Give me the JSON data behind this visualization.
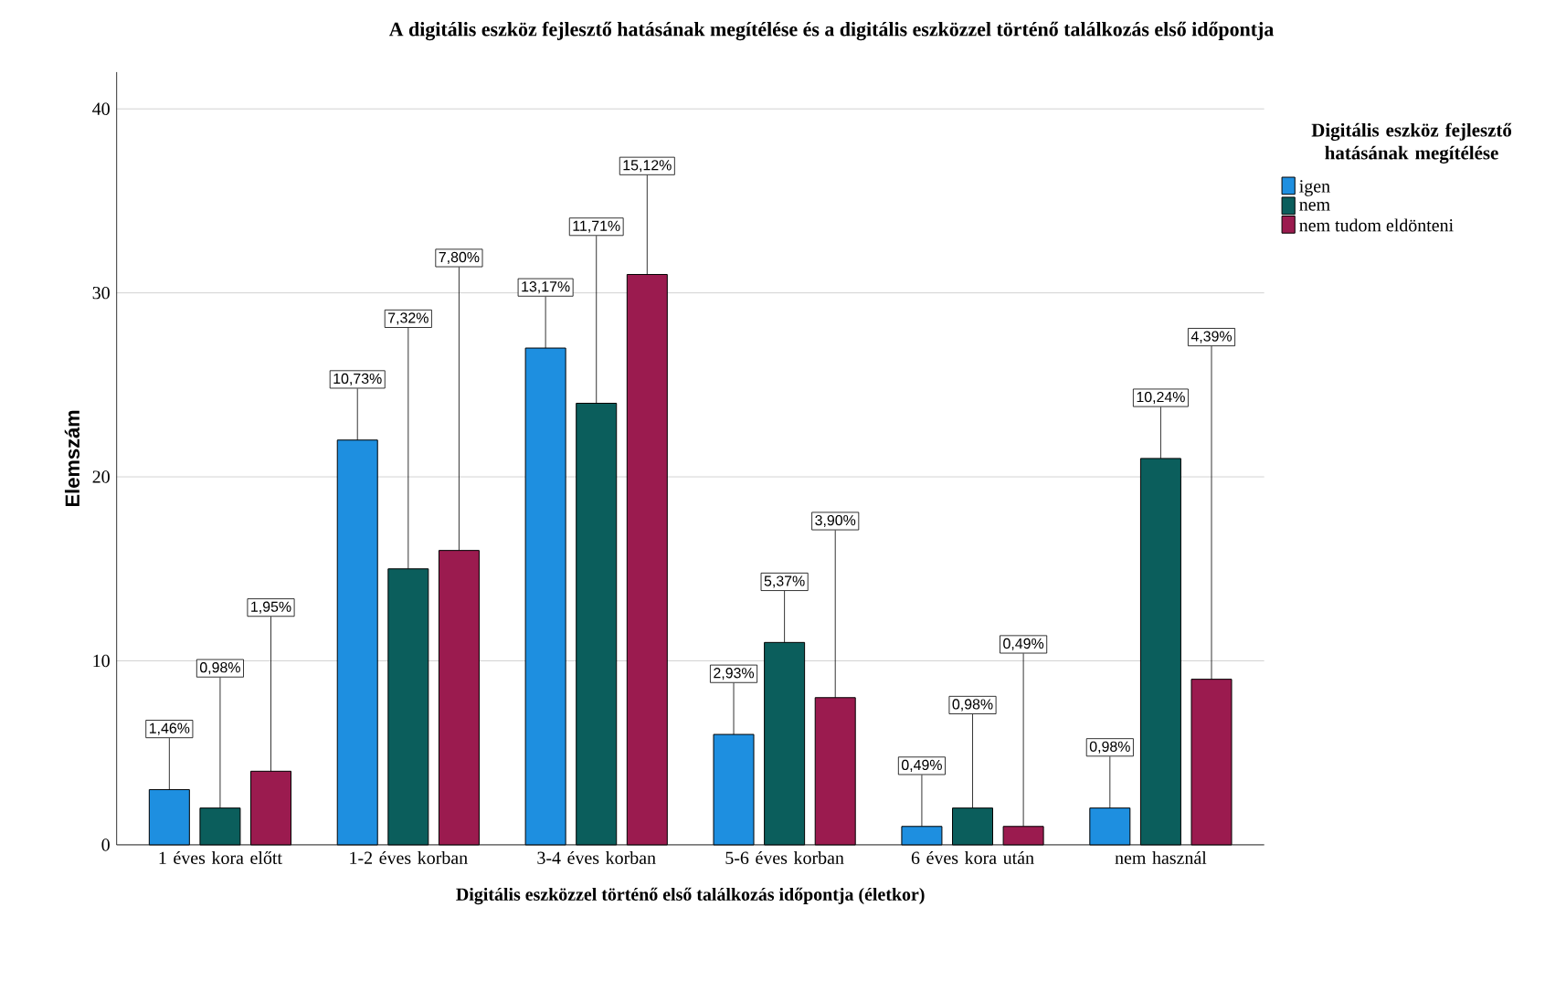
{
  "chart_data": {
    "type": "bar",
    "title": "A digitális eszköz fejlesztő hatásának megítélése és a digitális eszközzel történő találkozás első időpontja",
    "xlabel": "Digitális eszközzel történő első találkozás időpontja (életkor)",
    "ylabel": "Elemszám",
    "legend_title": "Digitális eszköz fejlesztő hatásának megítélése",
    "categories": [
      "1 éves kora előtt",
      "1-2 éves korban",
      "3-4 éves korban",
      "5-6 éves korban",
      "6 éves kora után",
      "nem használ"
    ],
    "series": [
      {
        "name": "igen",
        "color": "#1e8fe0",
        "values": [
          3,
          22,
          27,
          6,
          1,
          2
        ]
      },
      {
        "name": "nem",
        "color": "#0b5e5c",
        "values": [
          2,
          15,
          24,
          11,
          2,
          21
        ]
      },
      {
        "name": "nem tudom eldönteni",
        "color": "#9b1b4f",
        "values": [
          4,
          16,
          31,
          8,
          1,
          9
        ]
      }
    ],
    "annotations": [
      {
        "text": "1,46%",
        "y": 3
      },
      {
        "text": "0,98%",
        "y": 2
      },
      {
        "text": "1,95%",
        "y": 4
      },
      {
        "text": "10,73%",
        "y": 22
      },
      {
        "text": "7,32%",
        "y": 15
      },
      {
        "text": "7,80%",
        "y": 16
      },
      {
        "text": "13,17%",
        "y": 27
      },
      {
        "text": "11,71%",
        "y": 24
      },
      {
        "text": "15,12%",
        "y": 31
      },
      {
        "text": "2,93%",
        "y": 6
      },
      {
        "text": "5,37%",
        "y": 11
      },
      {
        "text": "3,90%",
        "y": 8
      },
      {
        "text": "0,49%",
        "y": 1
      },
      {
        "text": "0,98%",
        "y": 2
      },
      {
        "text": "0,49%",
        "y": 1
      },
      {
        "text": "0,98%",
        "y": 2
      },
      {
        "text": "10,24%",
        "y": 21
      },
      {
        "text": "4,39%",
        "y": 9
      }
    ],
    "ylim": [
      0,
      42
    ],
    "yticks": [
      0,
      10,
      20,
      30,
      40
    ],
    "grid": "y",
    "legend": "right"
  }
}
